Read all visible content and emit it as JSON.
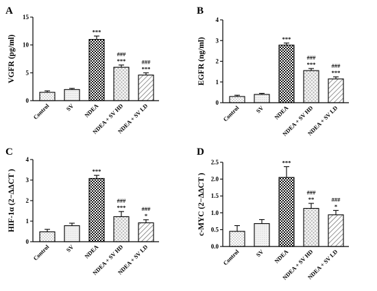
{
  "figure": {
    "categories": [
      "Control",
      "SV",
      "NDEA",
      "NDEA + SV HD",
      "NDEA + SV LD"
    ]
  },
  "chart_data": [
    {
      "panel": "A",
      "type": "bar",
      "ylabel": "VGFR (pg/ml)",
      "categories": [
        "Control",
        "SV",
        "NDEA",
        "NDEA + SV HD",
        "NDEA + SV LD"
      ],
      "values": [
        1.5,
        2.0,
        11.0,
        6.0,
        4.6
      ],
      "errors": [
        0.25,
        0.2,
        0.6,
        0.4,
        0.4
      ],
      "ylim": [
        0,
        15
      ],
      "yticks": [
        "0",
        "5",
        "10",
        "15"
      ],
      "annotations": [
        [],
        [],
        [
          "***"
        ],
        [
          "###",
          "***"
        ],
        [
          "###",
          "***"
        ]
      ]
    },
    {
      "panel": "B",
      "type": "bar",
      "ylabel": "EGFR (ng/ml)",
      "categories": [
        "Control",
        "SV",
        "NDEA",
        "NDEA + SV HD",
        "NDEA + SV LD"
      ],
      "values": [
        0.3,
        0.4,
        2.78,
        1.55,
        1.15
      ],
      "errors": [
        0.06,
        0.05,
        0.1,
        0.1,
        0.1
      ],
      "ylim": [
        0,
        4
      ],
      "yticks": [
        "0",
        "1",
        "2",
        "3",
        "4"
      ],
      "annotations": [
        [],
        [],
        [
          "***"
        ],
        [
          "###",
          "***"
        ],
        [
          "###",
          "***"
        ]
      ]
    },
    {
      "panel": "C",
      "type": "bar",
      "ylabel": "HIF-1α (2−ΔΔCT )",
      "categories": [
        "Control",
        "SV",
        "NDEA",
        "NDEA + SV HD",
        "NDEA + SV LD"
      ],
      "values": [
        0.48,
        0.78,
        3.08,
        1.22,
        0.92
      ],
      "errors": [
        0.12,
        0.12,
        0.15,
        0.25,
        0.15
      ],
      "ylim": [
        0,
        4
      ],
      "yticks": [
        "0",
        "1",
        "2",
        "3",
        "4"
      ],
      "annotations": [
        [],
        [],
        [
          "***"
        ],
        [
          "###",
          "***"
        ],
        [
          "###",
          "*"
        ]
      ]
    },
    {
      "panel": "D",
      "type": "bar",
      "ylabel": "c-MYC (2−ΔΔCT )",
      "categories": [
        "Control",
        "SV",
        "NDEA",
        "NDEA + SV HD",
        "NDEA + SV LD"
      ],
      "values": [
        0.45,
        0.68,
        2.05,
        1.13,
        0.94
      ],
      "errors": [
        0.17,
        0.12,
        0.32,
        0.15,
        0.13
      ],
      "ylim": [
        0,
        2.5
      ],
      "yticks": [
        "0.0",
        "0.5",
        "1.0",
        "1.5",
        "2.0",
        "2.5"
      ],
      "annotations": [
        [],
        [],
        [
          "***"
        ],
        [
          "###",
          "**"
        ],
        [
          "###",
          "*"
        ]
      ]
    }
  ]
}
